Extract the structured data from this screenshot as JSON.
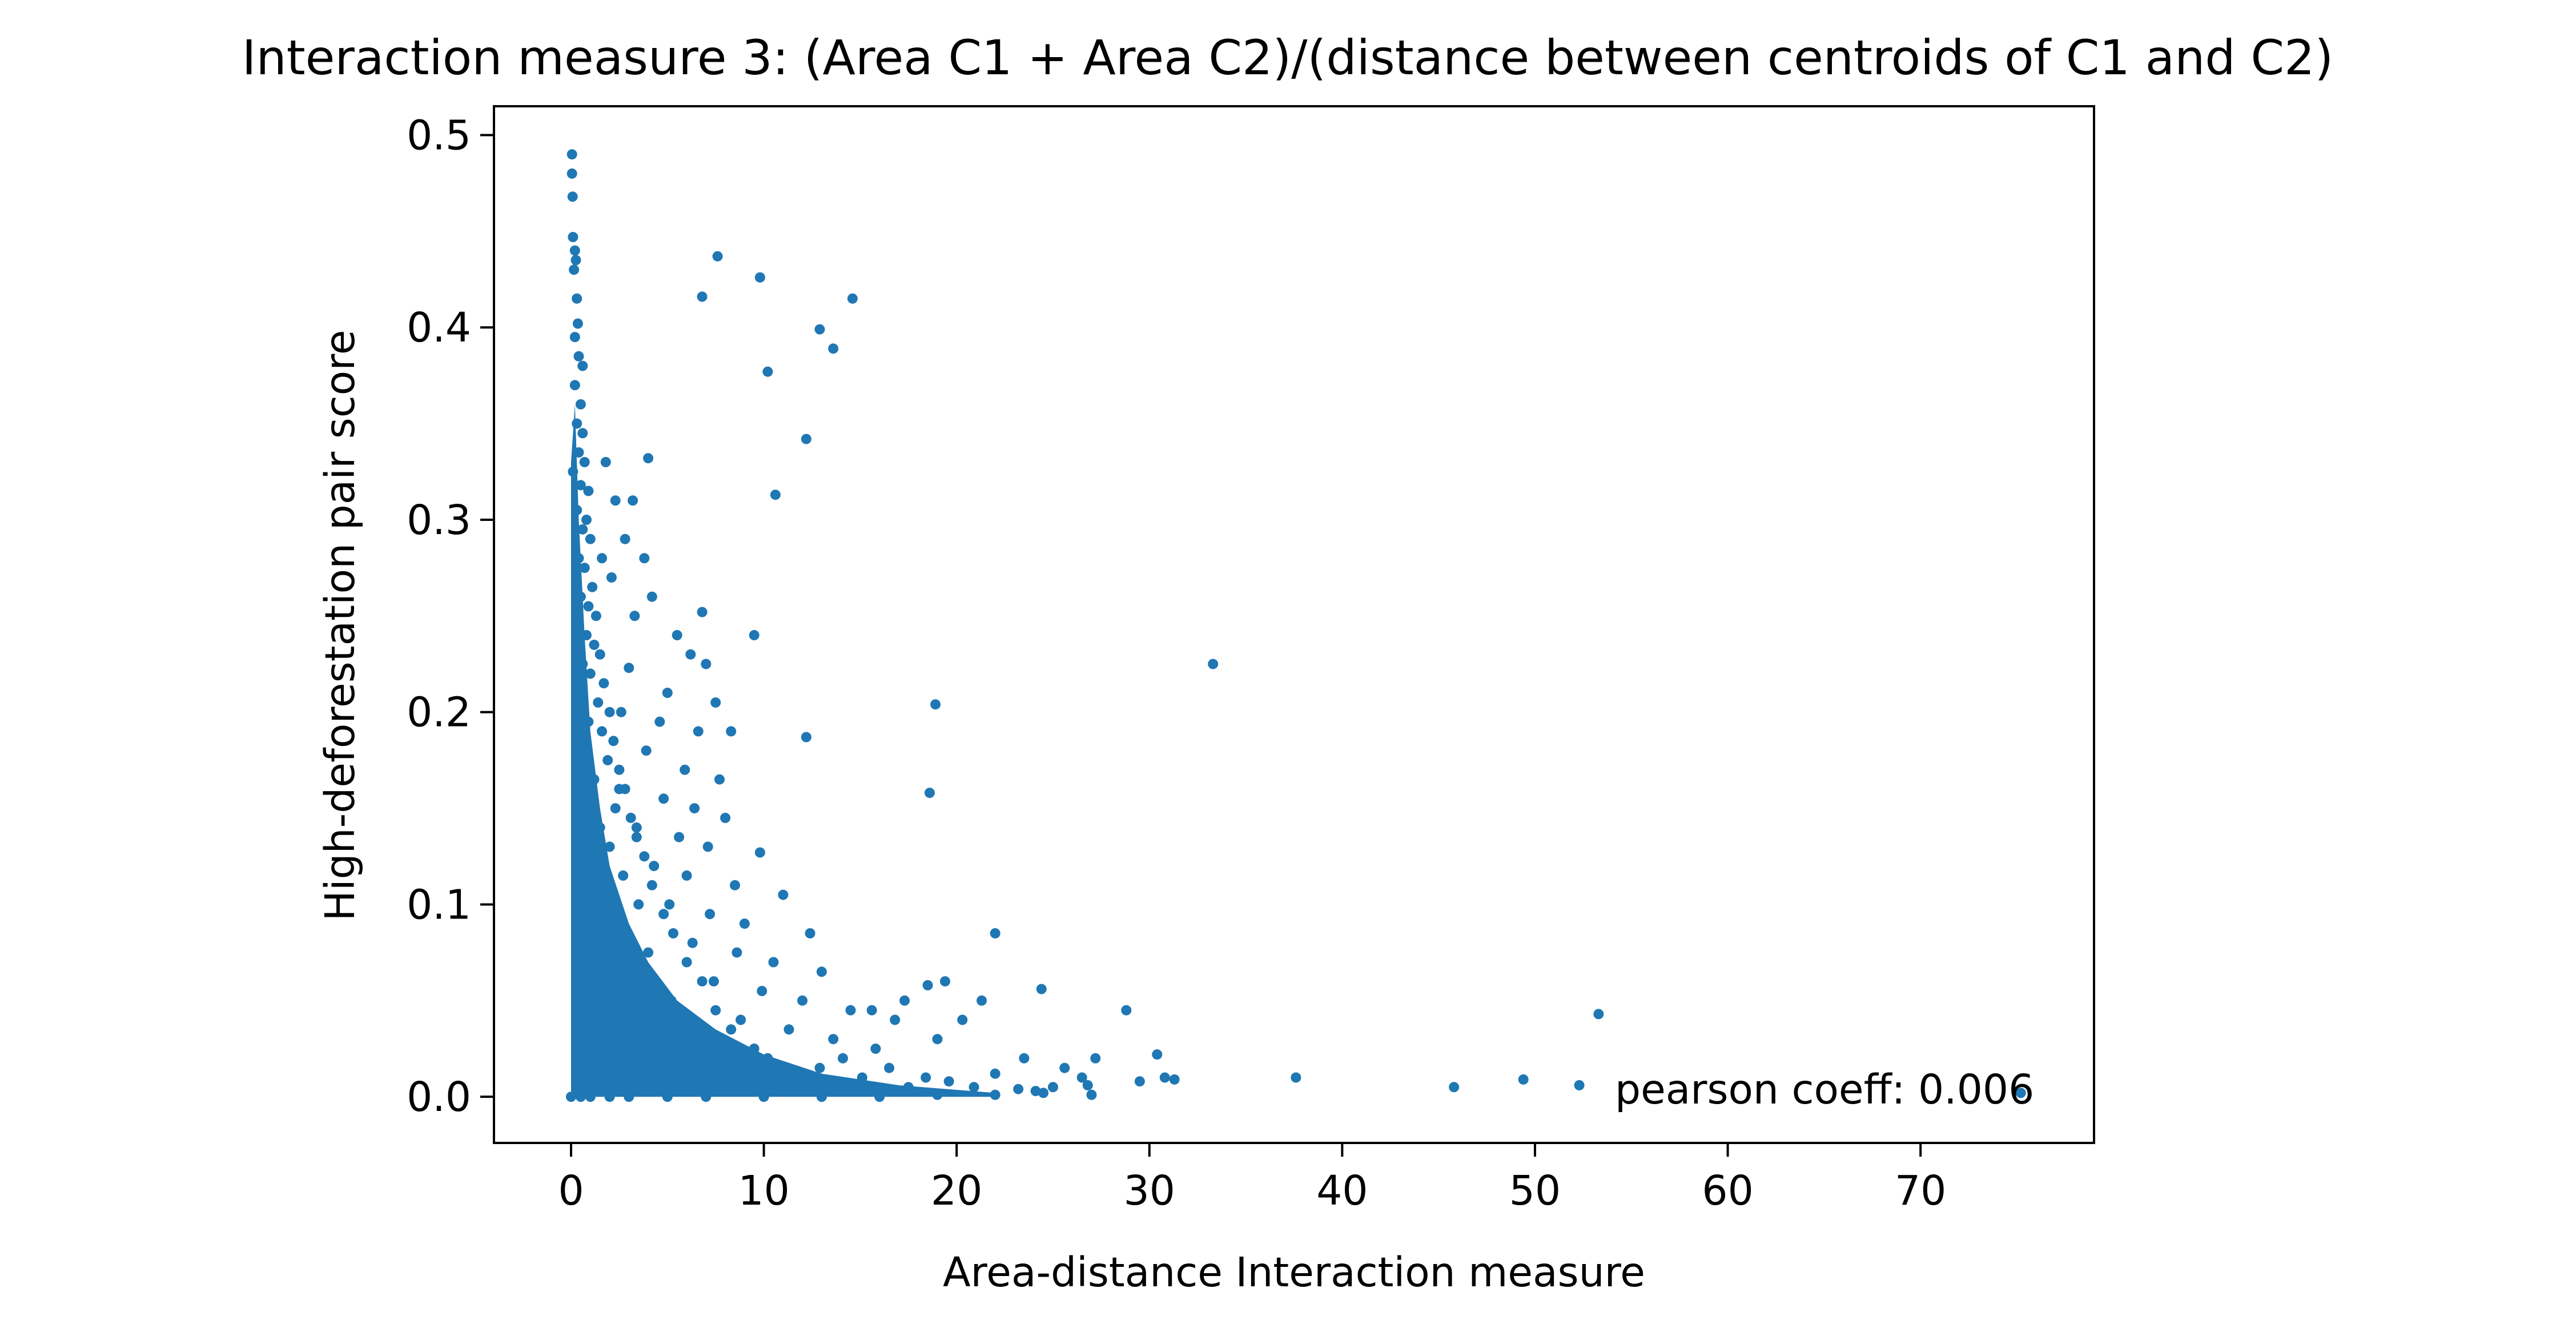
{
  "chart_data": {
    "type": "scatter",
    "title": "Interaction measure 3: (Area C1 + Area C2)/(distance between centroids of C1 and C2)",
    "xlabel": "Area-distance Interaction measure",
    "ylabel": "High-deforestation pair score",
    "xlim": [
      -4,
      79
    ],
    "ylim": [
      -0.024,
      0.515
    ],
    "xticks": [
      0,
      10,
      20,
      30,
      40,
      50,
      60,
      70
    ],
    "xtick_labels": [
      "0",
      "10",
      "20",
      "30",
      "40",
      "50",
      "60",
      "70"
    ],
    "yticks": [
      0.0,
      0.1,
      0.2,
      0.3,
      0.4,
      0.5
    ],
    "ytick_labels": [
      "0.0",
      "0.1",
      "0.2",
      "0.3",
      "0.4",
      "0.5"
    ],
    "grid": false,
    "legend": "none",
    "marker_color": "#1f77b4",
    "annotation": "pearson coeff: 0.006",
    "points": [
      [
        0.05,
        0.49
      ],
      [
        0.05,
        0.48
      ],
      [
        0.08,
        0.468
      ],
      [
        0.1,
        0.447
      ],
      [
        0.2,
        0.44
      ],
      [
        0.15,
        0.43
      ],
      [
        0.25,
        0.435
      ],
      [
        0.3,
        0.415
      ],
      [
        0.35,
        0.402
      ],
      [
        0.2,
        0.395
      ],
      [
        0.4,
        0.385
      ],
      [
        0.6,
        0.38
      ],
      [
        0.2,
        0.37
      ],
      [
        0.5,
        0.36
      ],
      [
        0.3,
        0.35
      ],
      [
        0.6,
        0.345
      ],
      [
        0.4,
        0.335
      ],
      [
        0.1,
        0.325
      ],
      [
        0.7,
        0.33
      ],
      [
        0.5,
        0.318
      ],
      [
        0.9,
        0.315
      ],
      [
        0.3,
        0.305
      ],
      [
        0.6,
        0.295
      ],
      [
        0.8,
        0.3
      ],
      [
        1.0,
        0.29
      ],
      [
        0.4,
        0.28
      ],
      [
        0.7,
        0.275
      ],
      [
        1.1,
        0.265
      ],
      [
        0.5,
        0.26
      ],
      [
        0.9,
        0.255
      ],
      [
        1.3,
        0.25
      ],
      [
        0.3,
        0.245
      ],
      [
        0.8,
        0.24
      ],
      [
        1.2,
        0.235
      ],
      [
        1.5,
        0.23
      ],
      [
        0.6,
        0.225
      ],
      [
        1.0,
        0.22
      ],
      [
        1.7,
        0.215
      ],
      [
        0.4,
        0.21
      ],
      [
        1.4,
        0.205
      ],
      [
        2.0,
        0.2
      ],
      [
        0.9,
        0.195
      ],
      [
        1.6,
        0.19
      ],
      [
        2.2,
        0.185
      ],
      [
        0.5,
        0.18
      ],
      [
        1.9,
        0.175
      ],
      [
        2.5,
        0.17
      ],
      [
        1.2,
        0.165
      ],
      [
        2.8,
        0.16
      ],
      [
        0.7,
        0.155
      ],
      [
        2.3,
        0.15
      ],
      [
        3.1,
        0.145
      ],
      [
        1.5,
        0.14
      ],
      [
        3.4,
        0.135
      ],
      [
        2.0,
        0.13
      ],
      [
        3.8,
        0.125
      ],
      [
        0.9,
        0.12
      ],
      [
        2.7,
        0.115
      ],
      [
        4.2,
        0.11
      ],
      [
        1.8,
        0.105
      ],
      [
        3.5,
        0.1
      ],
      [
        4.8,
        0.095
      ],
      [
        2.4,
        0.09
      ],
      [
        5.3,
        0.085
      ],
      [
        1.3,
        0.08
      ],
      [
        4.0,
        0.075
      ],
      [
        6.0,
        0.07
      ],
      [
        3.0,
        0.065
      ],
      [
        6.8,
        0.06
      ],
      [
        2.1,
        0.055
      ],
      [
        5.2,
        0.05
      ],
      [
        7.5,
        0.045
      ],
      [
        3.6,
        0.04
      ],
      [
        8.3,
        0.035
      ],
      [
        4.7,
        0.03
      ],
      [
        9.5,
        0.025
      ],
      [
        6.1,
        0.02
      ],
      [
        11.0,
        0.015
      ],
      [
        7.8,
        0.01
      ],
      [
        13.0,
        0.005
      ],
      [
        1.8,
        0.33
      ],
      [
        2.3,
        0.31
      ],
      [
        3.2,
        0.31
      ],
      [
        4.0,
        0.332
      ],
      [
        2.8,
        0.29
      ],
      [
        1.6,
        0.28
      ],
      [
        3.8,
        0.28
      ],
      [
        2.1,
        0.27
      ],
      [
        6.8,
        0.252
      ],
      [
        4.2,
        0.26
      ],
      [
        3.3,
        0.25
      ],
      [
        5.5,
        0.24
      ],
      [
        9.5,
        0.24
      ],
      [
        6.2,
        0.23
      ],
      [
        7.0,
        0.225
      ],
      [
        3.0,
        0.223
      ],
      [
        5.0,
        0.21
      ],
      [
        7.5,
        0.205
      ],
      [
        2.6,
        0.2
      ],
      [
        4.6,
        0.195
      ],
      [
        6.6,
        0.19
      ],
      [
        8.3,
        0.19
      ],
      [
        3.9,
        0.18
      ],
      [
        5.9,
        0.17
      ],
      [
        7.7,
        0.165
      ],
      [
        2.5,
        0.16
      ],
      [
        4.8,
        0.155
      ],
      [
        6.4,
        0.15
      ],
      [
        8.0,
        0.145
      ],
      [
        3.4,
        0.14
      ],
      [
        5.6,
        0.135
      ],
      [
        7.1,
        0.13
      ],
      [
        9.8,
        0.127
      ],
      [
        4.3,
        0.12
      ],
      [
        6.0,
        0.115
      ],
      [
        8.5,
        0.11
      ],
      [
        11.0,
        0.105
      ],
      [
        5.1,
        0.1
      ],
      [
        7.2,
        0.095
      ],
      [
        9.0,
        0.09
      ],
      [
        12.4,
        0.085
      ],
      [
        6.3,
        0.08
      ],
      [
        8.6,
        0.075
      ],
      [
        10.5,
        0.07
      ],
      [
        13.0,
        0.065
      ],
      [
        7.4,
        0.06
      ],
      [
        9.9,
        0.055
      ],
      [
        12.0,
        0.05
      ],
      [
        14.5,
        0.045
      ],
      [
        8.8,
        0.04
      ],
      [
        11.3,
        0.035
      ],
      [
        13.6,
        0.03
      ],
      [
        15.8,
        0.025
      ],
      [
        10.2,
        0.02
      ],
      [
        12.9,
        0.015
      ],
      [
        15.1,
        0.01
      ],
      [
        17.5,
        0.005
      ],
      [
        14.1,
        0.02
      ],
      [
        16.5,
        0.015
      ],
      [
        18.4,
        0.01
      ],
      [
        19.6,
        0.008
      ],
      [
        20.9,
        0.005
      ],
      [
        22.0,
        0.012
      ],
      [
        23.2,
        0.004
      ],
      [
        24.1,
        0.003
      ],
      [
        7.6,
        0.437
      ],
      [
        9.8,
        0.426
      ],
      [
        6.8,
        0.416
      ],
      [
        14.6,
        0.415
      ],
      [
        12.9,
        0.399
      ],
      [
        13.6,
        0.389
      ],
      [
        10.2,
        0.377
      ],
      [
        12.2,
        0.342
      ],
      [
        10.6,
        0.313
      ],
      [
        18.9,
        0.204
      ],
      [
        12.2,
        0.187
      ],
      [
        18.6,
        0.158
      ],
      [
        33.3,
        0.225
      ],
      [
        22.0,
        0.085
      ],
      [
        24.4,
        0.056
      ],
      [
        28.8,
        0.045
      ],
      [
        21.3,
        0.05
      ],
      [
        19.4,
        0.06
      ],
      [
        18.5,
        0.058
      ],
      [
        17.3,
        0.05
      ],
      [
        16.8,
        0.04
      ],
      [
        15.6,
        0.045
      ],
      [
        20.3,
        0.04
      ],
      [
        19.0,
        0.03
      ],
      [
        23.5,
        0.02
      ],
      [
        25.6,
        0.015
      ],
      [
        26.5,
        0.01
      ],
      [
        27.2,
        0.02
      ],
      [
        30.4,
        0.022
      ],
      [
        30.8,
        0.01
      ],
      [
        31.3,
        0.009
      ],
      [
        37.6,
        0.01
      ],
      [
        45.8,
        0.005
      ],
      [
        49.4,
        0.009
      ],
      [
        52.3,
        0.006
      ],
      [
        53.3,
        0.043
      ],
      [
        75.2,
        0.002
      ],
      [
        25.0,
        0.005
      ],
      [
        26.8,
        0.006
      ],
      [
        29.5,
        0.008
      ],
      [
        0.0,
        0.0
      ],
      [
        0.5,
        0.0
      ],
      [
        1.0,
        0.0
      ],
      [
        2.0,
        0.0
      ],
      [
        3.0,
        0.0
      ],
      [
        5.0,
        0.0
      ],
      [
        7.0,
        0.0
      ],
      [
        10.0,
        0.0
      ],
      [
        13.0,
        0.0
      ],
      [
        16.0,
        0.0
      ],
      [
        19.0,
        0.001
      ],
      [
        22.0,
        0.001
      ],
      [
        24.5,
        0.002
      ],
      [
        27.0,
        0.001
      ]
    ]
  }
}
